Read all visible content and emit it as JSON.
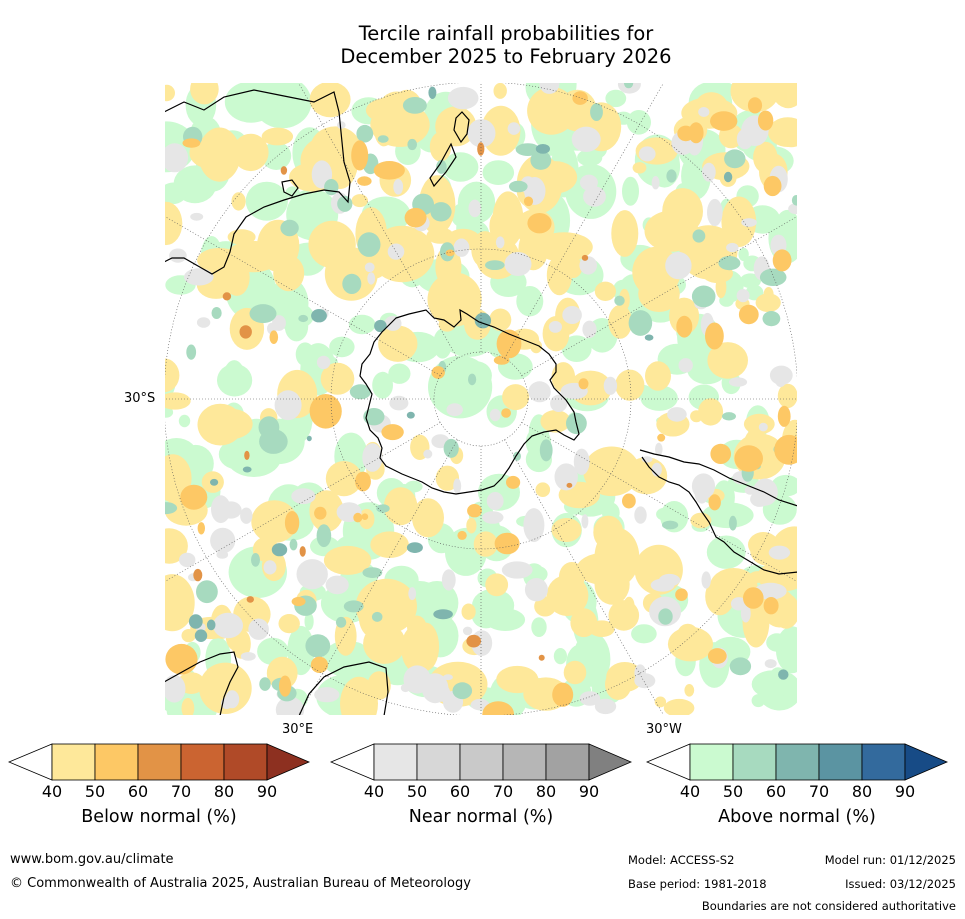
{
  "title_line1": "Tercile rainfall probabilities for",
  "title_line2": "December 2025 to February 2026",
  "map": {
    "projection": "south-polar stereographic",
    "lat_label": "30°S",
    "lon_label_east": "30°E",
    "lon_label_west": "30°W"
  },
  "legends": [
    {
      "title": "Below normal (%)",
      "ticks": [
        "40",
        "50",
        "60",
        "70",
        "80",
        "90"
      ],
      "colors": [
        "#ffffff",
        "#fee89a",
        "#fdc865",
        "#e29346",
        "#cb6431",
        "#b04a28",
        "#8d3020"
      ]
    },
    {
      "title": "Near normal (%)",
      "ticks": [
        "40",
        "50",
        "60",
        "70",
        "80",
        "90"
      ],
      "colors": [
        "#ffffff",
        "#e6e6e6",
        "#d7d7d7",
        "#c9c9c9",
        "#b6b6b6",
        "#a2a2a2",
        "#808080"
      ]
    },
    {
      "title": "Above normal (%)",
      "ticks": [
        "40",
        "50",
        "60",
        "70",
        "80",
        "90"
      ],
      "colors": [
        "#ffffff",
        "#cbfad0",
        "#a7dabf",
        "#7fb5ae",
        "#5b94a2",
        "#336a9d",
        "#174b86"
      ]
    }
  ],
  "footer": {
    "url": "www.bom.gov.au/climate",
    "copyright": "© Commonwealth of Australia 2025, Australian Bureau of Meteorology",
    "model": "Model: ACCESS-S2",
    "base_period": "Base period: 1981-2018",
    "model_run": "Model run: 01/12/2025",
    "issued": "Issued: 03/12/2025",
    "disclaimer": "Boundaries are not considered authoritative"
  }
}
